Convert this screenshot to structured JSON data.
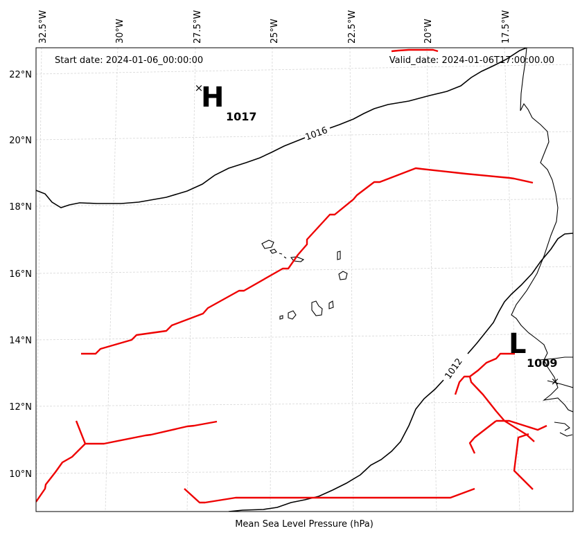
{
  "header": {
    "start_date": "Start date: 2024-01-06_00:00:00",
    "valid_date": "Valid_date: 2024-01-06T17:00:00.00"
  },
  "footer": {
    "xlabel": "Mean Sea Level Pressure (hPa)"
  },
  "axes": {
    "lon_ticks": [
      "32.5°W",
      "30°W",
      "27.5°W",
      "25°W",
      "22.5°W",
      "20°W",
      "17.5°W"
    ],
    "lat_ticks": [
      "22°N",
      "20°N",
      "18°N",
      "16°N",
      "14°N",
      "12°N",
      "10°N"
    ]
  },
  "pressure_centers": [
    {
      "type": "H",
      "value": "1017"
    },
    {
      "type": "L",
      "value": "1009"
    }
  ],
  "isobar_labels": [
    "1016",
    "1012"
  ],
  "colors": {
    "isobar": "#000000",
    "front": "#ee0000",
    "grid": "#d0d0d0"
  },
  "chart_data": {
    "type": "map",
    "title": "",
    "xlabel": "Mean Sea Level Pressure (hPa)",
    "lon_range": [
      -33,
      -15.5
    ],
    "lat_range": [
      9,
      23
    ],
    "grid": true,
    "pressure_highs": [
      {
        "label": "H",
        "value": 1017,
        "lon": -27.5,
        "lat": 21.3
      }
    ],
    "pressure_lows": [
      {
        "label": "L",
        "value": 1009,
        "lon": -15.5,
        "lat": 13
      }
    ],
    "isobars": [
      {
        "value": 1016
      },
      {
        "value": 1012
      }
    ]
  }
}
